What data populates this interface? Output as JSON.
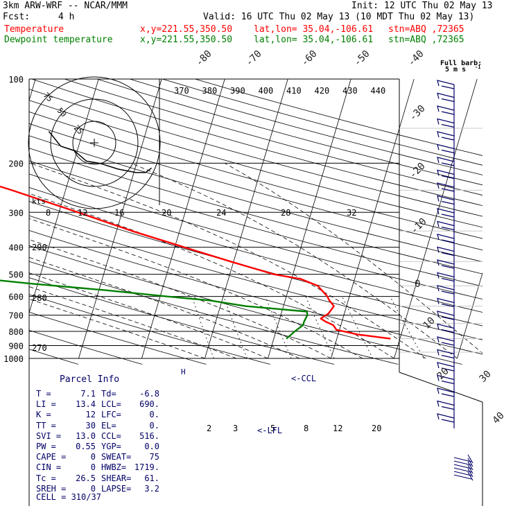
{
  "header": {
    "model": "3km ARW-WRF -- NCAR/MMM",
    "init": "Init: 12 UTC Thu 02 May 13",
    "fcst_label": "Fcst:",
    "fcst_value": "4 h",
    "valid": "Valid: 16 UTC Thu 02 May 13 (10 MDT Thu 02 May 13)",
    "series": [
      {
        "name": "Temperature",
        "xy": "x,y=221.55,350.50",
        "latlon": "lat,lon= 35.04,-106.61",
        "stn": "stn=ABQ ,72365",
        "color": "#ff0000"
      },
      {
        "name": "Dewpoint temperature",
        "xy": "x,y=221.55,350.50",
        "latlon": "lat,lon= 35.04,-106.61",
        "stn": "stn=ABQ ,72365",
        "color": "#008000"
      }
    ]
  },
  "chart_data": {
    "type": "line",
    "pressure_levels": [
      100,
      200,
      300,
      400,
      500,
      600,
      700,
      800,
      900,
      1000
    ],
    "isotherm_labels": [
      "-80",
      "-70",
      "-60",
      "-50",
      "-40",
      "-30",
      "-20",
      "-10",
      "0",
      "10",
      "20",
      "30",
      "40"
    ],
    "isentrope_labels": [
      "370",
      "380",
      "390",
      "400",
      "410",
      "420",
      "430",
      "440"
    ],
    "lower_theta_labels": [
      "290",
      "280",
      "270"
    ],
    "mixing_ratio_labels_upper": [
      "8",
      "12",
      "16",
      "20",
      "24",
      "28",
      "32"
    ],
    "mixing_ratio_labels_lower": [
      "2",
      "3",
      "5",
      "8",
      "12",
      "20"
    ],
    "wind_unit": "kts",
    "barb_legend": {
      "title": "Full barb:",
      "value": "5 m s",
      "sup": "-1"
    },
    "hodograph_rings": [
      "75",
      "50",
      "25"
    ],
    "annotations": {
      "ccl": "<-CCL",
      "lfl": "<-LFL",
      "h_mark": "H"
    },
    "series": [
      {
        "name": "Temperature",
        "color": "#ff0000",
        "points": [
          [
            850,
            18.5
          ],
          [
            820,
            13
          ],
          [
            790,
            9.5
          ],
          [
            760,
            8.8
          ],
          [
            740,
            7.5
          ],
          [
            720,
            6.5
          ],
          [
            690,
            7.5
          ],
          [
            650,
            8.0
          ],
          [
            620,
            7.0
          ],
          [
            600,
            6.5
          ],
          [
            550,
            4.5
          ],
          [
            520,
            1.5
          ],
          [
            500,
            -3
          ],
          [
            450,
            -10.5
          ],
          [
            400,
            -18.5
          ],
          [
            350,
            -27.5
          ],
          [
            300,
            -37
          ],
          [
            250,
            -48.5
          ],
          [
            220,
            -57
          ],
          [
            205,
            -60
          ],
          [
            190,
            -58.5
          ],
          [
            170,
            -57.5
          ],
          [
            150,
            -60
          ],
          [
            130,
            -62
          ],
          [
            110,
            -66
          ],
          [
            100,
            -68
          ]
        ]
      },
      {
        "name": "Dewpoint temperature",
        "color": "#008000",
        "points": [
          [
            850,
            2
          ],
          [
            800,
            3
          ],
          [
            760,
            4
          ],
          [
            740,
            4
          ],
          [
            700,
            4.2
          ],
          [
            680,
            4.0
          ],
          [
            650,
            -6
          ],
          [
            620,
            -12
          ],
          [
            600,
            -19
          ],
          [
            570,
            -29
          ],
          [
            540,
            -41
          ],
          [
            500,
            -56
          ],
          [
            450,
            -58
          ],
          [
            400,
            -63
          ],
          [
            350,
            -64
          ],
          [
            300,
            -66
          ],
          [
            250,
            -70
          ],
          [
            200,
            -75
          ],
          [
            170,
            -78
          ],
          [
            150,
            -81
          ],
          [
            120,
            -84
          ],
          [
            100,
            -88
          ]
        ]
      }
    ],
    "hodograph": [
      [
        -2.3,
        1.0
      ],
      [
        -1.7,
        -0.3
      ],
      [
        -1.0,
        -0.7
      ],
      [
        -0.4,
        -1.6
      ],
      [
        0.3,
        -1.8
      ],
      [
        1.2,
        -2.3
      ],
      [
        2.1,
        -2.6
      ],
      [
        2.6,
        -2.6
      ],
      [
        2.9,
        -2.2
      ]
    ]
  },
  "parcel": {
    "title": "Parcel Info",
    "rows": [
      {
        "l1": "T",
        "v1": "7.1",
        "l2": "Td",
        "v2": "-6.8"
      },
      {
        "l1": "LI",
        "v1": "13.4",
        "l2": "LCL",
        "v2": "690."
      },
      {
        "l1": "K",
        "v1": "12",
        "l2": "LFC",
        "v2": "0."
      },
      {
        "l1": "TT",
        "v1": "30",
        "l2": "EL",
        "v2": "0."
      },
      {
        "l1": "SVI",
        "v1": "13.0",
        "l2": "CCL",
        "v2": "516."
      },
      {
        "l1": "PW",
        "v1": "0.55",
        "l2": "YGP",
        "v2": "0.0"
      },
      {
        "l1": "CAPE",
        "v1": "0",
        "l2": "SWEAT",
        "v2": "75"
      },
      {
        "l1": "CIN",
        "v1": "0",
        "l2": "HWBZ",
        "v2": "1719."
      },
      {
        "l1": "Tc",
        "v1": "26.5",
        "l2": "SHEAR",
        "v2": "61."
      },
      {
        "l1": "SREH",
        "v1": "0",
        "l2": "LAPSE",
        "v2": "3.2"
      }
    ],
    "cell": "CELL = 310/37"
  }
}
